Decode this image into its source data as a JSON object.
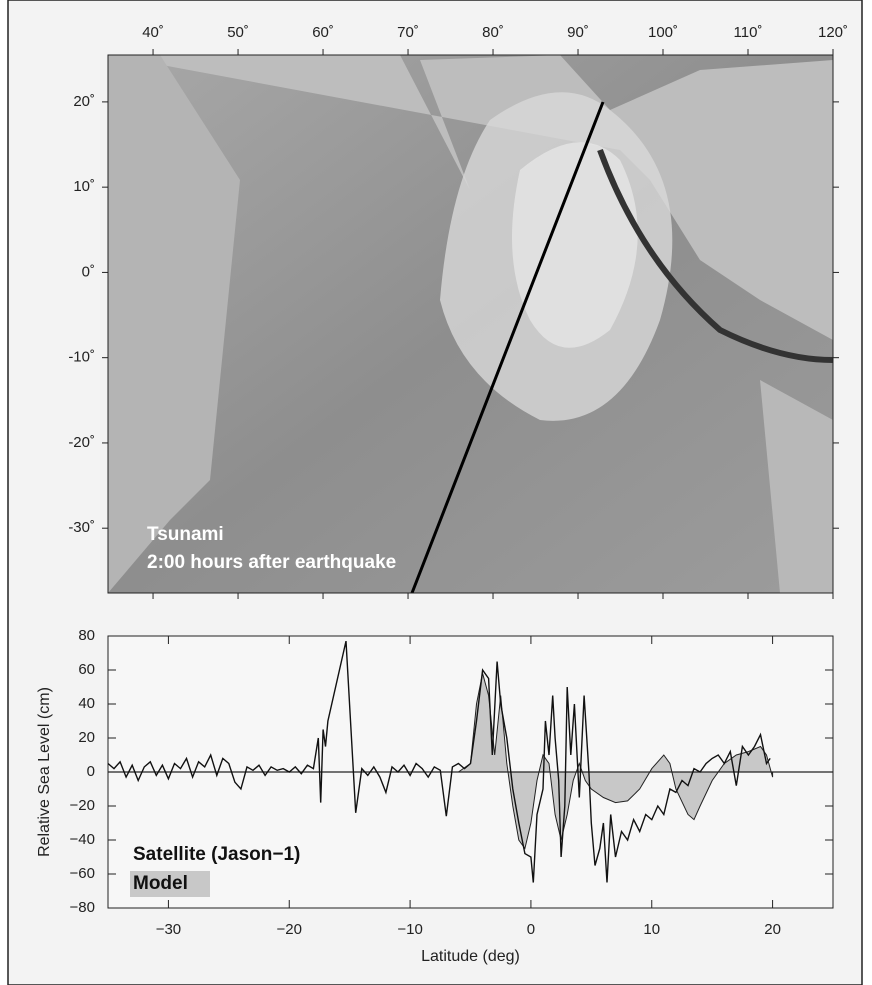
{
  "chart_data": [
    {
      "type": "map",
      "xlim": [
        34.7,
        120
      ],
      "ylim": [
        -37.6,
        25.5
      ],
      "xticks": [
        {
          "value": 40,
          "label": "40˚"
        },
        {
          "value": 50,
          "label": "50˚"
        },
        {
          "value": 60,
          "label": "60˚"
        },
        {
          "value": 70,
          "label": "70˚"
        },
        {
          "value": 80,
          "label": "80˚"
        },
        {
          "value": 90,
          "label": "90˚"
        },
        {
          "value": 100,
          "label": "100˚"
        },
        {
          "value": 110,
          "label": "110˚"
        },
        {
          "value": 120,
          "label": "120˚"
        }
      ],
      "yticks": [
        {
          "value": 20,
          "label": "20˚"
        },
        {
          "value": 10,
          "label": "10˚"
        },
        {
          "value": 0,
          "label": "0˚"
        },
        {
          "value": -10,
          "label": "-10˚"
        },
        {
          "value": -20,
          "label": "-20˚"
        },
        {
          "value": -30,
          "label": "-30˚"
        }
      ],
      "annotations": [
        "Tsunami",
        "2:00 hours after earthquake"
      ]
    },
    {
      "type": "line",
      "x_label": "Latitude (deg)",
      "y_label": "Relative Sea Level (cm)",
      "xlim": [
        -35,
        25
      ],
      "ylim": [
        -80,
        80
      ],
      "xticks": [
        {
          "value": -30,
          "label": "−30"
        },
        {
          "value": -20,
          "label": "−20"
        },
        {
          "value": -10,
          "label": "−10"
        },
        0,
        10,
        20
      ],
      "yticks": [
        {
          "value": -80,
          "label": "−80"
        },
        {
          "value": -60,
          "label": "−60"
        },
        {
          "value": -40,
          "label": "−40"
        },
        {
          "value": -20,
          "label": "−20"
        },
        0,
        20,
        40,
        60,
        80
      ],
      "legend": "lower left",
      "series": [
        {
          "name": "Model",
          "color": "#c8c8c8",
          "fill": true,
          "x": [
            -35,
            -6,
            -5,
            -4.5,
            -4,
            -3.5,
            -3,
            -2.5,
            -2,
            -1.5,
            -1,
            -0.5,
            0,
            0.5,
            1,
            1.5,
            2,
            2.5,
            3,
            3.5,
            4,
            4.5,
            5,
            6,
            7,
            8,
            9,
            10,
            11,
            11.5,
            12,
            13,
            13.5,
            14,
            15,
            16,
            17,
            18,
            19,
            19.5,
            20
          ],
          "values": [
            0,
            0,
            5,
            40,
            58,
            45,
            10,
            45,
            5,
            -20,
            -40,
            -45,
            -30,
            -5,
            10,
            5,
            -25,
            -40,
            -25,
            -5,
            5,
            -5,
            -10,
            -15,
            -18,
            -17,
            -10,
            2,
            10,
            5,
            -10,
            -25,
            -28,
            -20,
            -5,
            5,
            10,
            12,
            15,
            10,
            -3
          ]
        },
        {
          "name": "Satellite (Jason−1)",
          "color": "#111111",
          "fill": false,
          "x": [
            -35,
            -34.5,
            -34,
            -33.5,
            -33,
            -32.5,
            -32,
            -31.5,
            -31,
            -30.5,
            -30,
            -29.5,
            -29,
            -28.5,
            -28,
            -27.5,
            -27,
            -26.5,
            -26,
            -25.5,
            -25,
            -24.5,
            -24,
            -23.5,
            -23,
            -22.5,
            -22,
            -21.5,
            -21,
            -20.5,
            -20,
            -19.5,
            -19,
            -18.5,
            -18,
            -17.6,
            -17.4,
            -17.2,
            -17,
            -16.8,
            -15.3,
            -14.5,
            -14,
            -13.5,
            -13,
            -12.5,
            -12,
            -11.5,
            -11,
            -10.5,
            -10,
            -9.5,
            -9,
            -8.5,
            -8,
            -7.5,
            -7,
            -6.5,
            -6,
            -5.5,
            -5,
            -4.5,
            -4,
            -3.5,
            -3.2,
            -2.8,
            -2.5,
            -2,
            -1.5,
            -1,
            -0.5,
            0,
            0.2,
            0.5,
            1,
            1.2,
            1.5,
            1.8,
            2,
            2.3,
            2.5,
            2.8,
            3,
            3.3,
            3.6,
            4,
            4.4,
            4.8,
            5,
            5.3,
            5.7,
            6,
            6.3,
            6.6,
            7,
            7.5,
            8,
            8.5,
            9,
            9.5,
            10,
            10.5,
            11,
            11.5,
            12,
            12.5,
            13,
            13.5,
            14,
            14.5,
            15,
            15.5,
            16,
            16.5,
            17,
            17.5,
            18,
            18.5,
            19,
            19.5,
            19.8
          ],
          "values": [
            5,
            2,
            6,
            -3,
            4,
            -5,
            3,
            6,
            -2,
            4,
            -4,
            5,
            2,
            8,
            -3,
            6,
            3,
            10,
            -2,
            8,
            5,
            -6,
            -10,
            3,
            1,
            4,
            -2,
            3,
            1,
            2,
            0,
            3,
            -1,
            4,
            2,
            20,
            -18,
            25,
            15,
            30,
            77,
            -24,
            2,
            -2,
            3,
            -3,
            -12,
            3,
            0,
            4,
            -2,
            5,
            2,
            -3,
            3,
            1,
            -26,
            3,
            5,
            2,
            5,
            30,
            60,
            55,
            10,
            65,
            40,
            20,
            -10,
            -30,
            -48,
            -50,
            -65,
            -25,
            -10,
            30,
            10,
            45,
            20,
            -5,
            -50,
            -20,
            50,
            10,
            40,
            -15,
            45,
            0,
            -30,
            -55,
            -45,
            -30,
            -65,
            -25,
            -50,
            -35,
            -40,
            -28,
            -35,
            -25,
            -28,
            -20,
            -25,
            -10,
            -12,
            -5,
            -8,
            2,
            0,
            5,
            8,
            10,
            5,
            12,
            -8,
            15,
            10,
            15,
            22,
            5,
            8
          ]
        }
      ]
    }
  ]
}
